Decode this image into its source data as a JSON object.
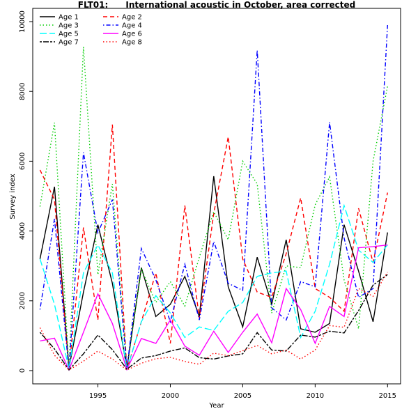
{
  "chart_data": {
    "type": "line",
    "title": "FLT01:      International acoustic in October, area corrected",
    "xlabel": "Year",
    "ylabel": "Survey index",
    "xlim": [
      1990.5,
      2015.9
    ],
    "ylim": [
      -380,
      10380
    ],
    "xticks": [
      1995,
      2000,
      2005,
      2010,
      2015
    ],
    "yticks": [
      0,
      2000,
      4000,
      6000,
      8000,
      10000
    ],
    "legend_position": "top-left",
    "x": [
      1991,
      1992,
      1993,
      1994,
      1995,
      1996,
      1997,
      1998,
      1999,
      2000,
      2001,
      2002,
      2003,
      2004,
      2005,
      2006,
      2007,
      2008,
      2009,
      2010,
      2011,
      2012,
      2013,
      2014,
      2015
    ],
    "series": [
      {
        "name": "Age 1",
        "color": "#000000",
        "dash": "solid",
        "values": [
          3200,
          5270,
          80,
          2250,
          4180,
          2500,
          60,
          2950,
          1550,
          1900,
          2700,
          1550,
          5570,
          2400,
          1250,
          3250,
          1900,
          3750,
          1200,
          1100,
          1350,
          4180,
          2850,
          1400,
          3960
        ]
      },
      {
        "name": "Age 2",
        "color": "#ff0000",
        "dash": "dashed",
        "values": [
          5750,
          4900,
          50,
          4100,
          1450,
          7050,
          30,
          1400,
          2800,
          780,
          4730,
          1500,
          4500,
          6700,
          3200,
          2250,
          2100,
          3350,
          4950,
          2350,
          2100,
          1700,
          4650,
          3100,
          5100
        ]
      },
      {
        "name": "Age 3",
        "color": "#00cd00",
        "dash": "dotted",
        "values": [
          4700,
          7100,
          80,
          9280,
          2750,
          5350,
          50,
          2900,
          1950,
          2550,
          1850,
          3250,
          4550,
          3750,
          6000,
          5350,
          1650,
          3000,
          2950,
          4750,
          5550,
          2600,
          1200,
          6000,
          8150
        ]
      },
      {
        "name": "Age 4",
        "color": "#0000ff",
        "dash": "dotdash",
        "values": [
          1750,
          4350,
          20,
          6250,
          3950,
          4900,
          40,
          3500,
          2600,
          1400,
          3050,
          1450,
          3700,
          2500,
          2300,
          9180,
          1800,
          1450,
          2550,
          2400,
          7120,
          3800,
          2100,
          2350,
          9900
        ]
      },
      {
        "name": "Age 5",
        "color": "#00ffff",
        "dash": "longdash",
        "values": [
          3200,
          1900,
          50,
          2800,
          3600,
          2800,
          20,
          1400,
          2150,
          1650,
          950,
          1250,
          1150,
          1700,
          1950,
          2700,
          2800,
          2850,
          950,
          1700,
          3050,
          4730,
          3450,
          3100,
          3600
        ]
      },
      {
        "name": "Age 6",
        "color": "#ff00ff",
        "dash": "solid",
        "values": [
          850,
          930,
          20,
          1100,
          2200,
          1350,
          30,
          920,
          780,
          1450,
          700,
          440,
          1130,
          520,
          1100,
          1620,
          800,
          2350,
          1750,
          780,
          1840,
          1550,
          3520,
          3550,
          3600
        ]
      },
      {
        "name": "Age 7",
        "color": "#000000",
        "dash": "twodash",
        "values": [
          1100,
          620,
          20,
          480,
          1020,
          600,
          40,
          360,
          430,
          560,
          650,
          370,
          330,
          420,
          480,
          1090,
          590,
          560,
          1020,
          960,
          1130,
          1080,
          1720,
          2450,
          2750
        ]
      },
      {
        "name": "Age 8",
        "color": "#ff0000",
        "dash": "dotted",
        "values": [
          1230,
          440,
          20,
          270,
          560,
          330,
          20,
          210,
          340,
          380,
          260,
          180,
          500,
          430,
          570,
          720,
          480,
          590,
          330,
          590,
          1290,
          1240,
          2350,
          2130,
          2820
        ]
      }
    ]
  }
}
